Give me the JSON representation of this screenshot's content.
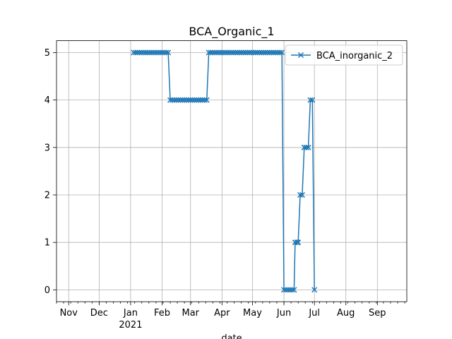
{
  "chart_data": {
    "type": "line",
    "title": "BCA_Organic_1",
    "xlabel": "date",
    "ylabel": "",
    "grid": true,
    "legend_position": "top-right",
    "xlim": [
      "2020-10-20",
      "2021-09-30"
    ],
    "ylim": [
      -0.25,
      5.25
    ],
    "x_ticks": [
      {
        "date": "2020-11-01",
        "label": "Nov"
      },
      {
        "date": "2020-12-01",
        "label": "Dec"
      },
      {
        "date": "2021-01-01",
        "label": "Jan",
        "sublabel": "2021"
      },
      {
        "date": "2021-02-01",
        "label": "Feb"
      },
      {
        "date": "2021-03-01",
        "label": "Mar"
      },
      {
        "date": "2021-04-01",
        "label": "Apr"
      },
      {
        "date": "2021-05-01",
        "label": "May"
      },
      {
        "date": "2021-06-01",
        "label": "Jun"
      },
      {
        "date": "2021-07-01",
        "label": "Jul"
      },
      {
        "date": "2021-08-01",
        "label": "Aug"
      },
      {
        "date": "2021-09-01",
        "label": "Sep"
      }
    ],
    "y_ticks": [
      0,
      1,
      2,
      3,
      4,
      5
    ],
    "series": [
      {
        "name": "BCA_inorganic_2",
        "color": "#1f77b4",
        "marker": "x",
        "points": [
          [
            "2021-01-04",
            5
          ],
          [
            "2021-01-06",
            5
          ],
          [
            "2021-01-08",
            5
          ],
          [
            "2021-01-10",
            5
          ],
          [
            "2021-01-12",
            5
          ],
          [
            "2021-01-14",
            5
          ],
          [
            "2021-01-16",
            5
          ],
          [
            "2021-01-18",
            5
          ],
          [
            "2021-01-20",
            5
          ],
          [
            "2021-01-22",
            5
          ],
          [
            "2021-01-24",
            5
          ],
          [
            "2021-01-26",
            5
          ],
          [
            "2021-01-28",
            5
          ],
          [
            "2021-01-30",
            5
          ],
          [
            "2021-02-01",
            5
          ],
          [
            "2021-02-03",
            5
          ],
          [
            "2021-02-05",
            5
          ],
          [
            "2021-02-07",
            5
          ],
          [
            "2021-02-09",
            4
          ],
          [
            "2021-02-11",
            4
          ],
          [
            "2021-02-13",
            4
          ],
          [
            "2021-02-15",
            4
          ],
          [
            "2021-02-17",
            4
          ],
          [
            "2021-02-19",
            4
          ],
          [
            "2021-02-21",
            4
          ],
          [
            "2021-02-23",
            4
          ],
          [
            "2021-02-25",
            4
          ],
          [
            "2021-02-27",
            4
          ],
          [
            "2021-03-01",
            4
          ],
          [
            "2021-03-03",
            4
          ],
          [
            "2021-03-05",
            4
          ],
          [
            "2021-03-07",
            4
          ],
          [
            "2021-03-09",
            4
          ],
          [
            "2021-03-11",
            4
          ],
          [
            "2021-03-13",
            4
          ],
          [
            "2021-03-15",
            4
          ],
          [
            "2021-03-17",
            4
          ],
          [
            "2021-03-19",
            5
          ],
          [
            "2021-03-21",
            5
          ],
          [
            "2021-03-23",
            5
          ],
          [
            "2021-03-25",
            5
          ],
          [
            "2021-03-27",
            5
          ],
          [
            "2021-03-29",
            5
          ],
          [
            "2021-03-31",
            5
          ],
          [
            "2021-04-02",
            5
          ],
          [
            "2021-04-04",
            5
          ],
          [
            "2021-04-06",
            5
          ],
          [
            "2021-04-08",
            5
          ],
          [
            "2021-04-10",
            5
          ],
          [
            "2021-04-12",
            5
          ],
          [
            "2021-04-14",
            5
          ],
          [
            "2021-04-16",
            5
          ],
          [
            "2021-04-18",
            5
          ],
          [
            "2021-04-20",
            5
          ],
          [
            "2021-04-22",
            5
          ],
          [
            "2021-04-24",
            5
          ],
          [
            "2021-04-26",
            5
          ],
          [
            "2021-04-28",
            5
          ],
          [
            "2021-04-30",
            5
          ],
          [
            "2021-05-02",
            5
          ],
          [
            "2021-05-04",
            5
          ],
          [
            "2021-05-06",
            5
          ],
          [
            "2021-05-08",
            5
          ],
          [
            "2021-05-10",
            5
          ],
          [
            "2021-05-12",
            5
          ],
          [
            "2021-05-14",
            5
          ],
          [
            "2021-05-16",
            5
          ],
          [
            "2021-05-18",
            5
          ],
          [
            "2021-05-20",
            5
          ],
          [
            "2021-05-22",
            5
          ],
          [
            "2021-05-24",
            5
          ],
          [
            "2021-05-26",
            5
          ],
          [
            "2021-05-28",
            5
          ],
          [
            "2021-05-30",
            5
          ],
          [
            "2021-06-01",
            0
          ],
          [
            "2021-06-03",
            0
          ],
          [
            "2021-06-05",
            0
          ],
          [
            "2021-06-07",
            0
          ],
          [
            "2021-06-09",
            0
          ],
          [
            "2021-06-11",
            0
          ],
          [
            "2021-06-12",
            1
          ],
          [
            "2021-06-14",
            1
          ],
          [
            "2021-06-15",
            1
          ],
          [
            "2021-06-17",
            2
          ],
          [
            "2021-06-19",
            2
          ],
          [
            "2021-06-21",
            3
          ],
          [
            "2021-06-23",
            3
          ],
          [
            "2021-06-25",
            3
          ],
          [
            "2021-06-27",
            4
          ],
          [
            "2021-06-29",
            4
          ],
          [
            "2021-07-01",
            0
          ]
        ]
      }
    ]
  }
}
